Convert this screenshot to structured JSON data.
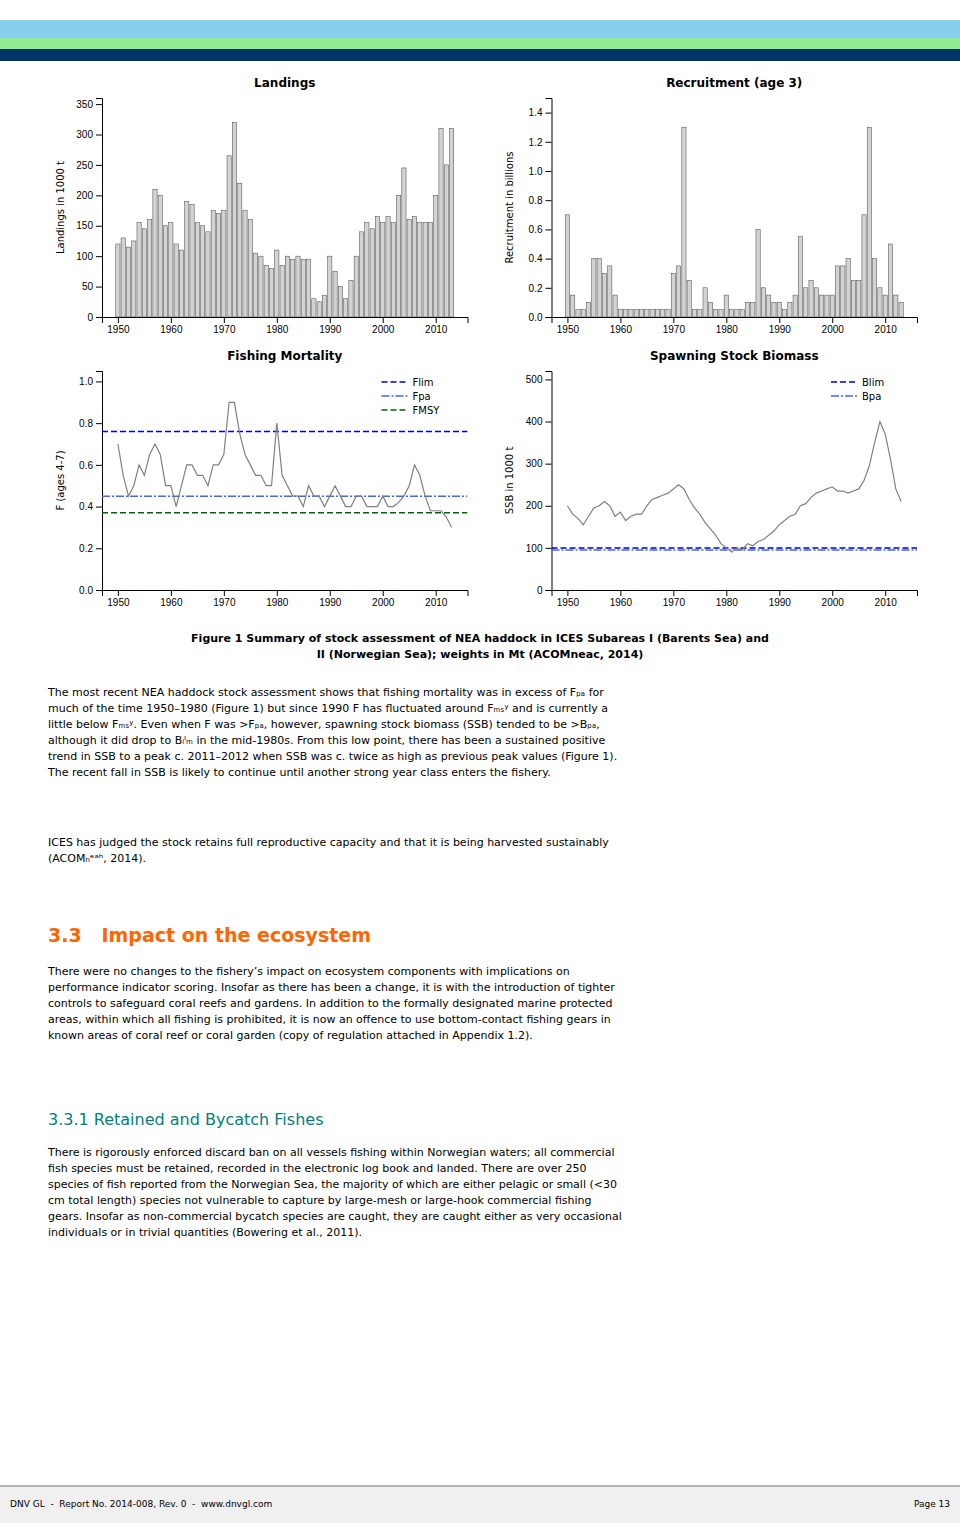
{
  "header_colors": [
    "#87CEEB",
    "#90EE90",
    "#003366"
  ],
  "chart_data": [
    {
      "type": "bar",
      "title": "Landings",
      "y_label": "Landings in 1000 t",
      "x": [
        1950,
        1951,
        1952,
        1953,
        1954,
        1955,
        1956,
        1957,
        1958,
        1959,
        1960,
        1961,
        1962,
        1963,
        1964,
        1965,
        1966,
        1967,
        1968,
        1969,
        1970,
        1971,
        1972,
        1973,
        1974,
        1975,
        1976,
        1977,
        1978,
        1979,
        1980,
        1981,
        1982,
        1983,
        1984,
        1985,
        1986,
        1987,
        1988,
        1989,
        1990,
        1991,
        1992,
        1993,
        1994,
        1995,
        1996,
        1997,
        1998,
        1999,
        2000,
        2001,
        2002,
        2003,
        2004,
        2005,
        2006,
        2007,
        2008,
        2009,
        2010,
        2011,
        2012,
        2013
      ],
      "values": [
        120,
        130,
        115,
        125,
        155,
        145,
        160,
        210,
        200,
        150,
        155,
        120,
        110,
        190,
        185,
        155,
        150,
        140,
        175,
        170,
        175,
        265,
        320,
        220,
        175,
        160,
        105,
        100,
        85,
        80,
        110,
        85,
        100,
        95,
        100,
        95,
        95,
        30,
        25,
        35,
        100,
        75,
        50,
        30,
        60,
        100,
        140,
        155,
        145,
        165,
        155,
        165,
        155,
        200,
        245,
        160,
        165,
        155,
        155,
        155,
        200,
        310,
        250,
        310
      ],
      "color": "#D3D3D3",
      "xlim": [
        1947,
        2016
      ],
      "xticks": [
        1950,
        1960,
        1970,
        1980,
        1990,
        2000,
        2010
      ],
      "ylim": [
        0,
        360
      ],
      "yticks": [
        0,
        50,
        100,
        150,
        200,
        250,
        300,
        350
      ]
    },
    {
      "type": "bar",
      "title": "Recruitment (age 3)",
      "y_label": "Recruitment in billions",
      "x": [
        1950,
        1951,
        1952,
        1953,
        1954,
        1955,
        1956,
        1957,
        1958,
        1959,
        1960,
        1961,
        1962,
        1963,
        1964,
        1965,
        1966,
        1967,
        1968,
        1969,
        1970,
        1971,
        1972,
        1973,
        1974,
        1975,
        1976,
        1977,
        1978,
        1979,
        1980,
        1981,
        1982,
        1983,
        1984,
        1985,
        1986,
        1987,
        1988,
        1989,
        1990,
        1991,
        1992,
        1993,
        1994,
        1995,
        1996,
        1997,
        1998,
        1999,
        2000,
        2001,
        2002,
        2003,
        2004,
        2005,
        2006,
        2007,
        2008,
        2009,
        2010,
        2011,
        2012,
        2013
      ],
      "values": [
        0.7,
        0.15,
        0.05,
        0.05,
        0.1,
        0.4,
        0.4,
        0.3,
        0.35,
        0.15,
        0.05,
        0.05,
        0.05,
        0.05,
        0.05,
        0.05,
        0.05,
        0.05,
        0.05,
        0.05,
        0.3,
        0.35,
        1.3,
        0.25,
        0.05,
        0.05,
        0.2,
        0.1,
        0.05,
        0.05,
        0.15,
        0.05,
        0.05,
        0.05,
        0.1,
        0.1,
        0.6,
        0.2,
        0.15,
        0.1,
        0.1,
        0.05,
        0.1,
        0.15,
        0.55,
        0.2,
        0.25,
        0.2,
        0.15,
        0.15,
        0.15,
        0.35,
        0.35,
        0.4,
        0.25,
        0.25,
        0.7,
        1.3,
        0.4,
        0.2,
        0.15,
        0.5,
        0.15,
        0.1
      ],
      "color": "#D3D3D3",
      "xlim": [
        1947,
        2016
      ],
      "xticks": [
        1950,
        1960,
        1970,
        1980,
        1990,
        2000,
        2010
      ],
      "ylim": [
        0,
        1.5
      ],
      "yticks": [
        {
          "value": 0,
          "label": "0.0"
        },
        0.2,
        0.4,
        0.6,
        0.8,
        {
          "value": 1,
          "label": "1.0"
        },
        1.2,
        1.4
      ]
    },
    {
      "type": "line",
      "title": "Fishing Mortality",
      "y_label": "F (ages 4-7)",
      "x": [
        1950,
        1951,
        1952,
        1953,
        1954,
        1955,
        1956,
        1957,
        1958,
        1959,
        1960,
        1961,
        1962,
        1963,
        1964,
        1965,
        1966,
        1967,
        1968,
        1969,
        1970,
        1971,
        1972,
        1973,
        1974,
        1975,
        1976,
        1977,
        1978,
        1979,
        1980,
        1981,
        1982,
        1983,
        1984,
        1985,
        1986,
        1987,
        1988,
        1989,
        1990,
        1991,
        1992,
        1993,
        1994,
        1995,
        1996,
        1997,
        1998,
        1999,
        2000,
        2001,
        2002,
        2003,
        2004,
        2005,
        2006,
        2007,
        2008,
        2009,
        2010,
        2011,
        2012,
        2013
      ],
      "values": [
        0.7,
        0.55,
        0.45,
        0.5,
        0.6,
        0.55,
        0.65,
        0.7,
        0.65,
        0.5,
        0.5,
        0.4,
        0.5,
        0.6,
        0.6,
        0.55,
        0.55,
        0.5,
        0.6,
        0.6,
        0.65,
        0.9,
        0.9,
        0.75,
        0.65,
        0.6,
        0.55,
        0.55,
        0.5,
        0.5,
        0.8,
        0.55,
        0.5,
        0.45,
        0.45,
        0.4,
        0.5,
        0.45,
        0.45,
        0.4,
        0.45,
        0.5,
        0.45,
        0.4,
        0.4,
        0.45,
        0.45,
        0.4,
        0.4,
        0.4,
        0.45,
        0.4,
        0.4,
        0.42,
        0.45,
        0.5,
        0.6,
        0.55,
        0.45,
        0.38,
        0.38,
        0.38,
        0.35,
        0.3
      ],
      "color": "#808080",
      "reference_lines": [
        {
          "name": "Flim",
          "value": 0.76,
          "color": "#0000CD",
          "line_style": "dashed"
        },
        {
          "name": "Fpa",
          "value": 0.45,
          "color": "#4169E1",
          "line_style": "dashdot"
        },
        {
          "name": "FMSY",
          "value": 0.37,
          "color": "#006400",
          "line_style": "dashed"
        }
      ],
      "legend": "upper right",
      "xlim": [
        1947,
        2016
      ],
      "xticks": [
        1950,
        1960,
        1970,
        1980,
        1990,
        2000,
        2010
      ],
      "ylim": [
        0,
        1.05
      ],
      "yticks": [
        {
          "value": 0,
          "label": "0.0"
        },
        0.2,
        0.4,
        0.6,
        0.8,
        {
          "value": 1,
          "label": "1.0"
        }
      ]
    },
    {
      "type": "line",
      "title": "Spawning Stock Biomass",
      "y_label": "SSB in 1000 t",
      "x": [
        1950,
        1951,
        1952,
        1953,
        1954,
        1955,
        1956,
        1957,
        1958,
        1959,
        1960,
        1961,
        1962,
        1963,
        1964,
        1965,
        1966,
        1967,
        1968,
        1969,
        1970,
        1971,
        1972,
        1973,
        1974,
        1975,
        1976,
        1977,
        1978,
        1979,
        1980,
        1981,
        1982,
        1983,
        1984,
        1985,
        1986,
        1987,
        1988,
        1989,
        1990,
        1991,
        1992,
        1993,
        1994,
        1995,
        1996,
        1997,
        1998,
        1999,
        2000,
        2001,
        2002,
        2003,
        2004,
        2005,
        2006,
        2007,
        2008,
        2009,
        2010,
        2011,
        2012,
        2013
      ],
      "values": [
        200,
        180,
        170,
        155,
        175,
        195,
        200,
        210,
        200,
        175,
        185,
        165,
        175,
        180,
        180,
        200,
        215,
        220,
        225,
        230,
        240,
        250,
        240,
        215,
        195,
        180,
        160,
        145,
        130,
        110,
        100,
        90,
        100,
        95,
        110,
        105,
        115,
        120,
        130,
        140,
        155,
        165,
        175,
        180,
        200,
        205,
        220,
        230,
        235,
        240,
        245,
        235,
        235,
        230,
        235,
        240,
        260,
        295,
        350,
        400,
        370,
        310,
        240,
        210
      ],
      "color": "#808080",
      "reference_lines": [
        {
          "name": "Blim",
          "value": 100,
          "color": "#0000CD",
          "line_style": "dashed"
        },
        {
          "name": "Bpa",
          "value": 95,
          "color": "#4169E1",
          "line_style": "dashdot"
        }
      ],
      "legend": "upper right",
      "xlim": [
        1947,
        2016
      ],
      "xticks": [
        1950,
        1960,
        1970,
        1980,
        1990,
        2000,
        2010
      ],
      "ylim": [
        0,
        520
      ],
      "yticks": [
        0,
        100,
        200,
        300,
        400,
        500
      ]
    }
  ],
  "figure_caption": [
    "Figure 1 Summary of stock assessment of NEA haddock in ICES Subareas I (Barents Sea) and",
    "II (Norwegian Sea); weights in Mt (ACOMneac, 2014)"
  ],
  "para1": [
    "The most recent NEA haddock stock assessment shows that fishing mortality was in excess of Fₚₐ for",
    "much of the time 1950–1980 (Figure 1) but since 1990 F has fluctuated around Fₘₛʸ and is currently a",
    "little below Fₘₛʸ. Even when F was >Fₚₐ, however, spawning stock biomass (SSB) tended to be >Bₚₐ,",
    "although it did drop to Bₗᴵₘ in the mid-1980s. From this low point, there has been a sustained positive",
    "trend in SSB to a peak c. 2011–2012 when SSB was c. twice as high as previous peak values (Figure 1).",
    "The recent fall in SSB is likely to continue until another strong year class enters the fishery."
  ],
  "para2": [
    "ICES has judged the stock retains full reproductive capacity and that it is being harvested sustainably",
    "(ACOMₙᵉᵃʰ, 2014)."
  ],
  "section_header": {
    "text": "3.3   Impact on the ecosystem",
    "color": "#FF6600"
  },
  "para3": [
    "There were no changes to the fishery’s impact on ecosystem components with implications on",
    "performance indicator scoring. Insofar as there has been a change, it is with the introduction of tighter",
    "controls to safeguard coral reefs and gardens. In addition to the formally designated marine protected",
    "areas, within which all fishing is prohibited, it is now an offence to use bottom-contact fishing gears in",
    "known areas of coral reef or coral garden (copy of regulation attached in Appendix 1.2)."
  ],
  "subsection_header": {
    "text": "3.3.1 Retained and Bycatch Fishes",
    "color": "#008080"
  },
  "para4": [
    "There is rigorously enforced discard ban on all vessels fishing within Norwegian waters; all commercial",
    "fish species must be retained, recorded in the electronic log book and landed. There are over 250",
    "species of fish reported from the Norwegian Sea, the majority of which are either pelagic or small (<30",
    "cm total length) species not vulnerable to capture by large-mesh or large-hook commercial fishing",
    "gears. Insofar as non-commercial bycatch species are caught, they are caught either as very occasional",
    "individuals or in trivial quantities (Bowering et al., 2011)."
  ],
  "footer_text": "DNV GL  -  Report No. 2014-008, Rev. 0  -  www.dnvgl.com",
  "footer_right": "Page 13"
}
